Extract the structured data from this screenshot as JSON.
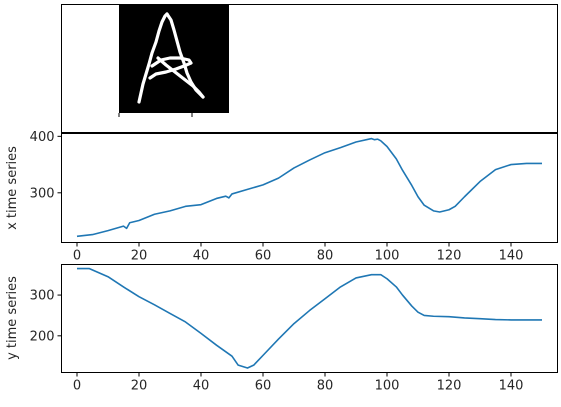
{
  "figure": {
    "panels": [
      "drawing",
      "x",
      "y"
    ]
  },
  "chart_data": [
    {
      "type": "image",
      "name": "drawn-letter-A",
      "description": "white stroke trajectory on black background"
    },
    {
      "type": "line",
      "ylabel": "x time series",
      "xlabel": "",
      "color": "#1f77b4",
      "xlim": [
        -5,
        155
      ],
      "ylim": [
        212,
        405
      ],
      "xticks": [
        0,
        20,
        40,
        60,
        80,
        100,
        120,
        140
      ],
      "yticks": [
        300,
        400
      ],
      "x": [
        0,
        5,
        10,
        15,
        16,
        17,
        20,
        25,
        30,
        35,
        40,
        45,
        48,
        49,
        50,
        55,
        60,
        65,
        70,
        75,
        80,
        85,
        90,
        95,
        96,
        97,
        98,
        100,
        103,
        105,
        108,
        110,
        112,
        115,
        117,
        120,
        122,
        125,
        130,
        135,
        140,
        145,
        150
      ],
      "y": [
        223,
        226,
        233,
        241,
        237,
        247,
        251,
        262,
        268,
        276,
        279,
        290,
        294,
        291,
        298,
        306,
        314,
        326,
        344,
        358,
        371,
        380,
        390,
        396,
        394,
        395,
        392,
        382,
        360,
        340,
        313,
        293,
        278,
        268,
        266,
        270,
        276,
        293,
        320,
        341,
        350,
        352,
        352
      ]
    },
    {
      "type": "line",
      "ylabel": "y time series",
      "xlabel": "",
      "color": "#1f77b4",
      "xlim": [
        -5,
        155
      ],
      "ylim": [
        110,
        375
      ],
      "xticks": [
        0,
        20,
        40,
        60,
        80,
        100,
        120,
        140
      ],
      "yticks": [
        200,
        300
      ],
      "x": [
        0,
        4,
        10,
        15,
        20,
        25,
        30,
        35,
        40,
        45,
        50,
        52,
        55,
        57,
        60,
        65,
        70,
        75,
        80,
        85,
        90,
        95,
        97,
        98,
        100,
        103,
        105,
        108,
        110,
        112,
        115,
        120,
        125,
        130,
        135,
        140,
        145,
        150
      ],
      "y": [
        365,
        365,
        345,
        320,
        296,
        276,
        255,
        234,
        206,
        177,
        150,
        128,
        121,
        128,
        152,
        192,
        230,
        262,
        291,
        320,
        342,
        350,
        350,
        350,
        340,
        320,
        300,
        273,
        258,
        250,
        248,
        247,
        244,
        242,
        240,
        239,
        239,
        239
      ]
    }
  ]
}
